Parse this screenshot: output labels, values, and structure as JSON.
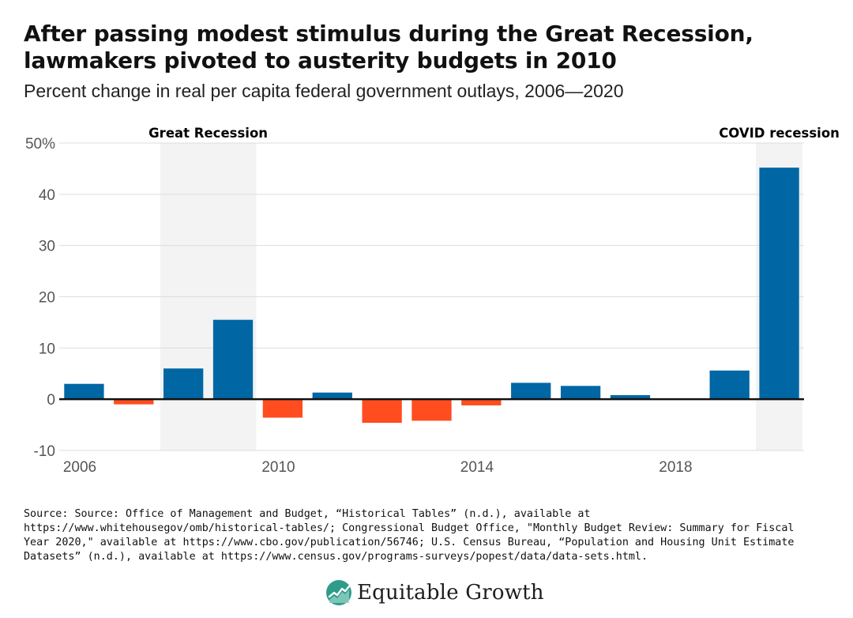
{
  "title": "After passing modest stimulus during the Great Recession, lawmakers pivoted to austerity budgets in 2010",
  "subtitle": "Percent change in real per capita federal government outlays, 2006—2020",
  "source": "Source: Source: Office of Management and Budget, “Historical Tables” (n.d.), available at https://www.whitehousegov/omb/historical-tables/; Congressional Budget Office, \"Monthly Budget Review: Summary for Fiscal Year 2020,\" available at https://www.cbo.gov/publication/56746; U.S. Census Bureau, “Population and Housing Unit Estimate Datasets” (n.d.), available at https://www.census.gov/programs-surveys/popest/data/data-sets.html.",
  "logo": {
    "name": "Equitable Growth",
    "icon": "equitable-growth-logo-icon"
  },
  "colors": {
    "positive": "#0066a4",
    "negative": "#ff4d1f",
    "shade": "#f3f3f3",
    "grid": "#dddddd",
    "axis": "#111111",
    "tick_text": "#555555"
  },
  "chart_data": {
    "type": "bar",
    "title": "Percent change in real per capita federal government outlays, 2006—2020",
    "xlabel": "",
    "ylabel": "",
    "years": [
      2006,
      2007,
      2008,
      2009,
      2010,
      2011,
      2012,
      2013,
      2014,
      2015,
      2016,
      2017,
      2018,
      2019,
      2020
    ],
    "values": [
      3.0,
      -1.0,
      6.0,
      15.5,
      -3.6,
      1.3,
      -4.6,
      -4.2,
      -1.2,
      3.2,
      2.6,
      0.8,
      0.1,
      5.6,
      45.2
    ],
    "ylim": [
      -10,
      50
    ],
    "yticks": [
      -10,
      0,
      10,
      20,
      30,
      40,
      50
    ],
    "ytick_labels": [
      "-10",
      "0",
      "10",
      "20",
      "30",
      "40",
      "50%"
    ],
    "xticks": [
      2006,
      2010,
      2014,
      2018
    ],
    "xtick_labels": [
      "2006",
      "2010",
      "2014",
      "2018"
    ],
    "grid": true,
    "shaded_regions": [
      {
        "label": "Great Recession",
        "from_year": 2008,
        "to_year": 2009
      },
      {
        "label": "COVID recession",
        "from_year": 2020,
        "to_year": 2020
      }
    ]
  }
}
